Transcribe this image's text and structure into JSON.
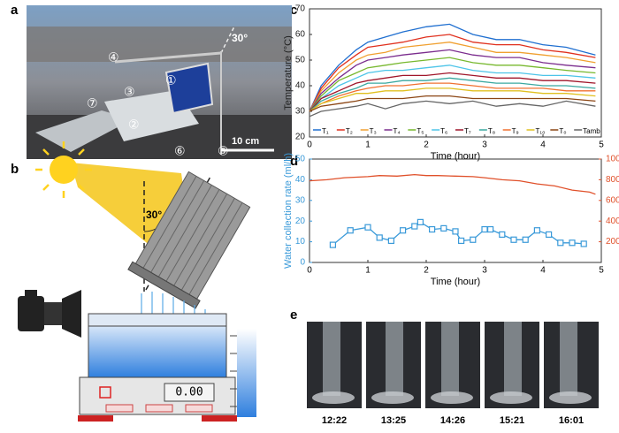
{
  "panel_labels": [
    "a",
    "b",
    "c",
    "d",
    "e"
  ],
  "photo_a": {
    "markers": [
      "①",
      "②",
      "③",
      "④",
      "⑤",
      "⑥",
      "⑦"
    ],
    "angle": "30°",
    "scale": "10 cm"
  },
  "diagram_b": {
    "angle": "30°",
    "display": "0.00"
  },
  "panel_e": {
    "times": [
      "12:22",
      "13:25",
      "14:26",
      "15:21",
      "16:01"
    ]
  },
  "chart_data": [
    {
      "type": "line",
      "xlabel": "Time (hour)",
      "ylabel": "Temperature (°C)",
      "x": [
        0,
        0.2,
        0.5,
        0.8,
        1.0,
        1.3,
        1.6,
        2.0,
        2.4,
        2.8,
        3.2,
        3.6,
        4.0,
        4.4,
        4.9
      ],
      "xlim": [
        0,
        5
      ],
      "xticks": [
        0,
        1,
        2,
        3,
        4,
        5
      ],
      "ylim": [
        20,
        70
      ],
      "yticks": [
        20,
        30,
        40,
        50,
        60,
        70
      ],
      "legend": "lower center",
      "series": [
        {
          "name": "T₁",
          "color": "#1f6fd0",
          "values": [
            30,
            40,
            48,
            54,
            57,
            59,
            61,
            63,
            64,
            60,
            58,
            58,
            56,
            55,
            52
          ]
        },
        {
          "name": "T₂",
          "color": "#e0301e",
          "values": [
            30,
            39,
            47,
            52,
            55,
            56,
            57,
            59,
            60,
            57,
            56,
            56,
            54,
            53,
            51
          ]
        },
        {
          "name": "T₃",
          "color": "#f0a030",
          "values": [
            30,
            38,
            45,
            50,
            52,
            53,
            55,
            56,
            57,
            55,
            53,
            53,
            52,
            51,
            49
          ]
        },
        {
          "name": "T₄",
          "color": "#7b2d8e",
          "values": [
            30,
            37,
            43,
            48,
            50,
            51,
            52,
            53,
            54,
            52,
            51,
            51,
            49,
            48,
            47
          ]
        },
        {
          "name": "T₅",
          "color": "#77b82e",
          "values": [
            30,
            36,
            42,
            45,
            47,
            48,
            49,
            50,
            51,
            49,
            48,
            48,
            47,
            46,
            45
          ]
        },
        {
          "name": "T₆",
          "color": "#4dc4e8",
          "values": [
            30,
            35,
            40,
            43,
            45,
            46,
            46,
            47,
            48,
            46,
            45,
            45,
            44,
            44,
            43
          ]
        },
        {
          "name": "T₇",
          "color": "#a0162a",
          "values": [
            30,
            35,
            38,
            41,
            42,
            43,
            44,
            44,
            45,
            44,
            43,
            43,
            42,
            42,
            41
          ]
        },
        {
          "name": "T₈",
          "color": "#3aa8a0",
          "values": [
            30,
            34,
            37,
            39,
            41,
            41,
            42,
            42,
            43,
            42,
            41,
            41,
            40,
            40,
            39
          ]
        },
        {
          "name": "T₉",
          "color": "#f07030",
          "values": [
            30,
            33,
            36,
            38,
            39,
            40,
            40,
            41,
            41,
            40,
            39,
            39,
            39,
            38,
            38
          ]
        },
        {
          "name": "T₁₀",
          "color": "#e0c020",
          "values": [
            30,
            33,
            35,
            37,
            37,
            38,
            38,
            39,
            39,
            38,
            38,
            38,
            37,
            37,
            36
          ]
        },
        {
          "name": "T₀",
          "color": "#8b4513",
          "values": [
            30,
            32,
            33,
            34,
            35,
            35,
            35,
            36,
            36,
            35,
            35,
            35,
            35,
            35,
            34
          ]
        },
        {
          "name": "Tamb",
          "color": "#666666",
          "values": [
            28,
            30,
            31,
            32,
            33,
            31,
            33,
            34,
            33,
            34,
            32,
            33,
            32,
            34,
            32
          ]
        }
      ]
    },
    {
      "type": "line",
      "xlabel": "Time (hour)",
      "ylabel": "Water collection rate (ml/h)",
      "y2label": "Solar flux (W/m²)",
      "ycolor": "#3a9ad9",
      "y2color": "#e0502a",
      "xlim": [
        0,
        5
      ],
      "xticks": [
        0,
        1,
        2,
        3,
        4,
        5
      ],
      "ylim": [
        0,
        50
      ],
      "yticks": [
        0,
        10,
        20,
        30,
        40,
        50
      ],
      "y2lim": [
        0,
        1000
      ],
      "y2ticks": [
        200,
        400,
        600,
        800,
        1000
      ],
      "series": [
        {
          "name": "Water collection rate",
          "color": "#3a9ad9",
          "marker": "square",
          "x": [
            0.4,
            0.7,
            1.0,
            1.2,
            1.4,
            1.6,
            1.8,
            1.9,
            2.1,
            2.3,
            2.5,
            2.6,
            2.8,
            3.0,
            3.1,
            3.3,
            3.5,
            3.7,
            3.9,
            4.1,
            4.3,
            4.5,
            4.7
          ],
          "values": [
            8.5,
            15.5,
            17,
            12,
            10.5,
            15.5,
            17.5,
            19.5,
            16,
            16.5,
            15,
            10.5,
            11,
            16,
            16,
            13.5,
            11,
            11,
            15.5,
            13.5,
            9.5,
            9.5,
            9
          ]
        },
        {
          "name": "Solar flux",
          "color": "#e0502a",
          "axis": "y2",
          "x": [
            0,
            0.3,
            0.6,
            1.0,
            1.2,
            1.5,
            1.8,
            2.0,
            2.2,
            2.5,
            2.8,
            3.0,
            3.3,
            3.6,
            3.9,
            4.2,
            4.5,
            4.8,
            4.9
          ],
          "values": [
            790,
            800,
            820,
            830,
            840,
            835,
            850,
            840,
            840,
            835,
            830,
            820,
            800,
            790,
            760,
            740,
            700,
            680,
            660
          ]
        }
      ]
    }
  ]
}
